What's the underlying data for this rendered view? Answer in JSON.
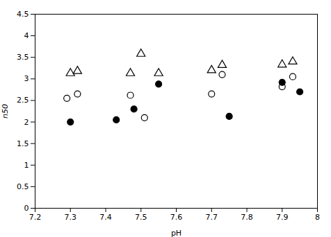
{
  "chart_data": {
    "type": "scatter",
    "xlabel": "pH",
    "ylabel": "n50",
    "xlim": [
      7.2,
      8.0
    ],
    "ylim": [
      0,
      4.5
    ],
    "xticks": [
      7.2,
      7.3,
      7.4,
      7.5,
      7.6,
      7.7,
      7.8,
      7.9,
      8
    ],
    "yticks": [
      0,
      0.5,
      1,
      1.5,
      2,
      2.5,
      3,
      3.5,
      4,
      4.5
    ],
    "grid": false,
    "series": [
      {
        "marker": "triangle-open",
        "color": "#000000",
        "x": [
          7.3,
          7.32,
          7.47,
          7.5,
          7.55,
          7.7,
          7.73,
          7.9,
          7.93
        ],
        "values": [
          3.13,
          3.18,
          3.13,
          3.58,
          3.13,
          3.2,
          3.32,
          3.33,
          3.4
        ]
      },
      {
        "marker": "circle-open",
        "color": "#000000",
        "x": [
          7.29,
          7.32,
          7.47,
          7.51,
          7.7,
          7.73,
          7.9,
          7.93
        ],
        "values": [
          2.55,
          2.65,
          2.62,
          2.1,
          2.65,
          3.1,
          2.82,
          3.05
        ]
      },
      {
        "marker": "circle",
        "color": "#000000",
        "x": [
          7.3,
          7.43,
          7.48,
          7.55,
          7.75,
          7.9,
          7.95
        ],
        "values": [
          2.0,
          2.05,
          2.3,
          2.88,
          2.13,
          2.92,
          2.7
        ]
      }
    ]
  }
}
